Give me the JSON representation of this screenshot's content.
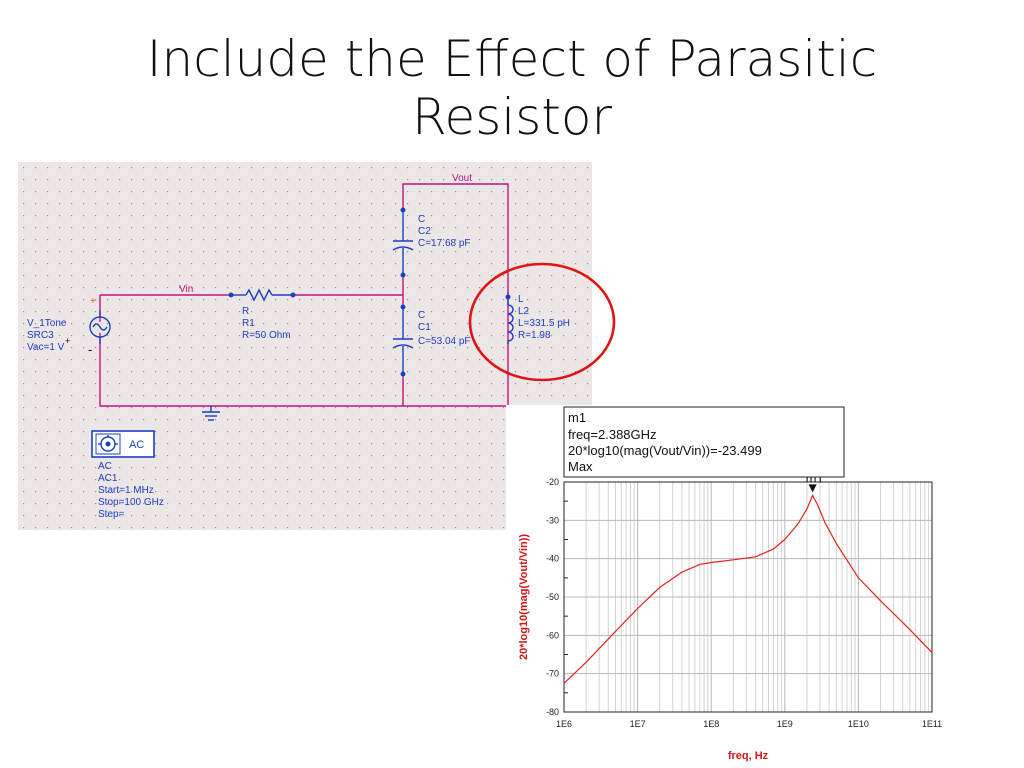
{
  "slide": {
    "title_line1": "Include the Effect of Parasitic",
    "title_line2": "Resistor"
  },
  "schematic": {
    "source": {
      "label1": "V_1Tone",
      "label2": "SRC3",
      "label3": "Vac=1 V",
      "plus": "+",
      "minus": "-",
      "terminal_plus": "+"
    },
    "resistor": {
      "type": "R",
      "name": "R1",
      "value": "R=50 Ohm"
    },
    "cap2": {
      "type": "C",
      "name": "C2",
      "value": "C=17.68 pF"
    },
    "cap1": {
      "type": "C",
      "name": "C1",
      "value": "C=53.04 pF"
    },
    "inductor": {
      "type": "L",
      "name": "L2",
      "value": "L=331.5 pH",
      "resistance": "R=1.98"
    },
    "nets": {
      "vin": "Vin",
      "vout": "Vout"
    },
    "ac": {
      "box": "AC",
      "type": "AC",
      "name": "AC1",
      "start": "Start=1 MHz",
      "stop": "Stop=100 GHz",
      "step": "Step="
    },
    "colors": {
      "grid_bg": "#ece6e6",
      "wire": "#c0147c",
      "component_text": "#1d3fc4",
      "highlight": "#e01414"
    }
  },
  "chart_data": {
    "type": "line",
    "xscale": "log",
    "xlim": [
      1000000,
      100000000000
    ],
    "ylim": [
      -80,
      -20
    ],
    "xlabel": "freq, Hz",
    "ylabel": "20*log10(mag(Vout/Vin))",
    "x_ticks": [
      "1E6",
      "1E7",
      "1E8",
      "1E9",
      "1E10",
      "1E11"
    ],
    "y_ticks": [
      "-20",
      "-30",
      "-40",
      "-50",
      "-60",
      "-70",
      "-80"
    ],
    "grid": true,
    "line_color": "#e02020",
    "series": [
      {
        "x": [
          1000000,
          2000000,
          5000000,
          10000000,
          20000000,
          40000000,
          70000000,
          100000000,
          200000000,
          400000000,
          700000000,
          1000000000,
          1500000000,
          2000000000,
          2388000000,
          2800000000,
          3500000000,
          5000000000,
          10000000000,
          20000000000,
          50000000000,
          100000000000
        ],
        "y": [
          -72.5,
          -67,
          -59,
          -53,
          -47.5,
          -43.5,
          -41.5,
          -41,
          -40.3,
          -39.5,
          -37.5,
          -35,
          -31,
          -27,
          -23.5,
          -26,
          -30.5,
          -36,
          -45,
          -51,
          -58.5,
          -64.5
        ]
      }
    ],
    "marker": {
      "name": "m1",
      "x": 2388000000,
      "y": -23.499,
      "box_lines": [
        "m1",
        "freq=2.388GHz",
        "20*log10(mag(Vout/Vin))=-23.499",
        "Max"
      ]
    }
  }
}
